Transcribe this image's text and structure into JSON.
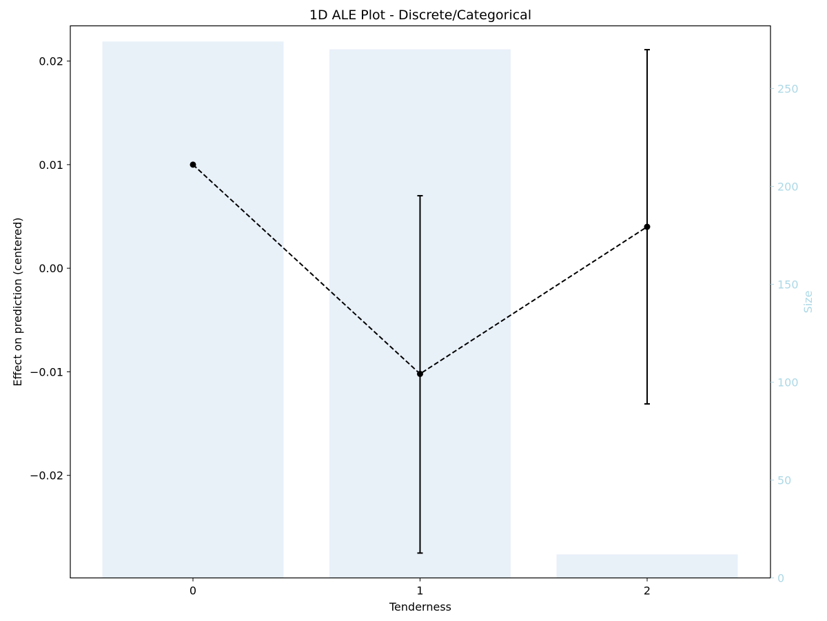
{
  "chart_data": {
    "type": "bar+line",
    "title": "1D ALE Plot - Discrete/Categorical",
    "xlabel": "Tenderness",
    "ylabel": "Effect on prediction (centered)",
    "y2label": "Size",
    "categories": [
      "0",
      "1",
      "2"
    ],
    "ale": {
      "values": [
        0.01,
        -0.0102,
        0.004
      ],
      "ci_lower": [
        null,
        -0.0275,
        -0.0131
      ],
      "ci_upper": [
        null,
        0.007,
        0.0211
      ],
      "line_style": "dashed",
      "color": "#000000"
    },
    "size": {
      "values": [
        274,
        270,
        12
      ],
      "color": "#e8f0f8"
    },
    "ylim": [
      -0.0299,
      0.0234
    ],
    "y2lim": [
      0,
      282
    ],
    "yticks": [
      -0.02,
      -0.01,
      0.0,
      0.01,
      0.02
    ],
    "yticklabels": [
      "−0.02",
      "−0.01",
      "0.00",
      "0.01",
      "0.02"
    ],
    "y2ticks": [
      0,
      50,
      100,
      150,
      200,
      250
    ],
    "y2ticklabels": [
      "0",
      "50",
      "100",
      "150",
      "200",
      "250"
    ],
    "axis2_color": "#add8e6",
    "grid": false
  }
}
